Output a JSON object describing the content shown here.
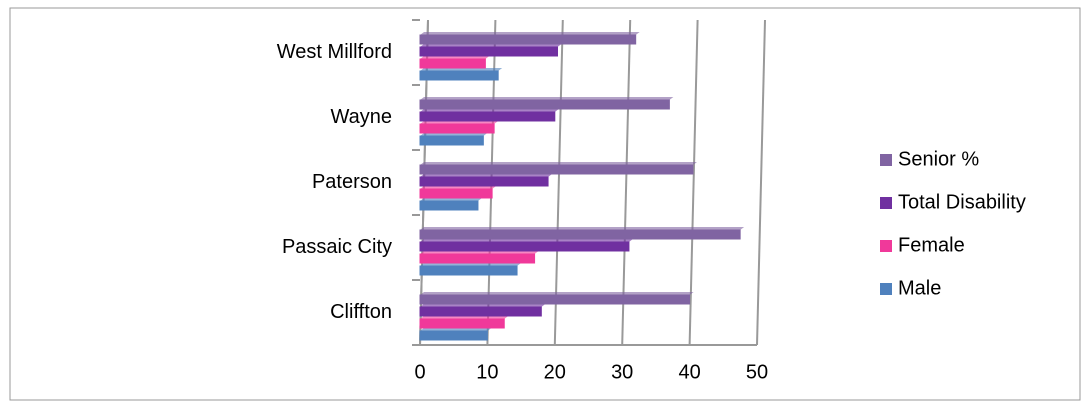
{
  "chart_data": {
    "type": "bar",
    "orientation": "horizontal",
    "categories": [
      "Cliffton",
      "Passaic City",
      "Paterson",
      "Wayne",
      "West Millford"
    ],
    "series": [
      {
        "name": "Male",
        "color": "#4f81bd",
        "values": [
          10,
          14.4,
          8.6,
          9.4,
          11.6
        ]
      },
      {
        "name": "Female",
        "color": "#f0399a",
        "values": [
          12.5,
          17,
          10.7,
          11,
          9.7
        ]
      },
      {
        "name": "Total Disability",
        "color": "#7030a0",
        "values": [
          18,
          31,
          19,
          20,
          20.4
        ]
      },
      {
        "name": "Senior %",
        "color": "#8064a2",
        "values": [
          40,
          47.5,
          40.5,
          37,
          32
        ]
      }
    ],
    "xlim": [
      0,
      50
    ],
    "xticks": [
      0,
      10,
      20,
      30,
      40,
      50
    ],
    "grid": true,
    "legend": "right"
  }
}
